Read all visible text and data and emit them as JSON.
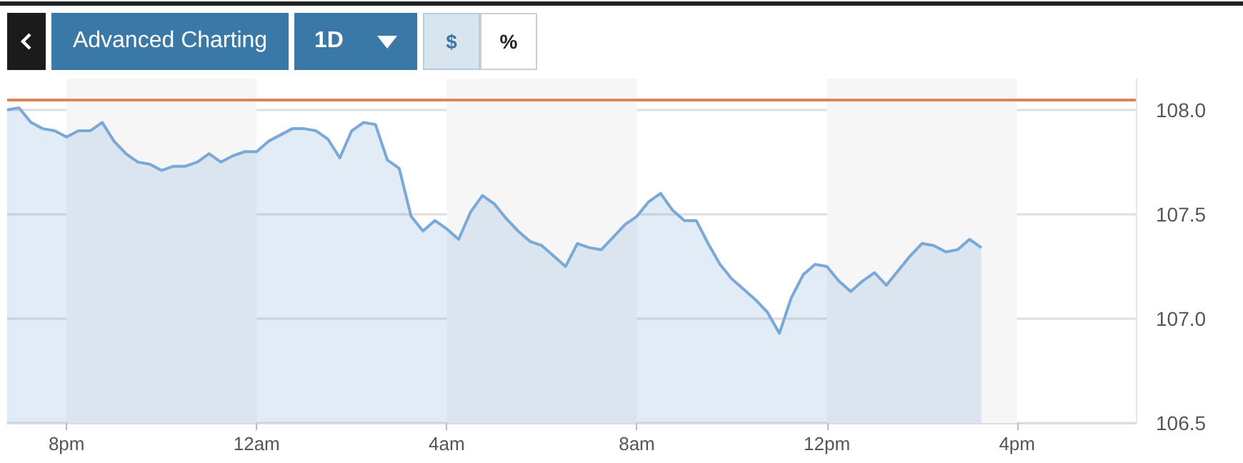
{
  "chart_data": {
    "type": "area",
    "annotations": [
      "Advanced Charting",
      "1D",
      "$",
      "%"
    ],
    "categories": [
      null,
      null,
      null,
      null,
      null,
      "8pm",
      null,
      null,
      null,
      null,
      null,
      null,
      null,
      null,
      null,
      null,
      null,
      null,
      null,
      null,
      null,
      "12am",
      null,
      null,
      null,
      null,
      null,
      null,
      null,
      null,
      null,
      null,
      null,
      null,
      null,
      null,
      null,
      "4am",
      null,
      null,
      null,
      null,
      null,
      null,
      null,
      null,
      null,
      null,
      null,
      null,
      null,
      null,
      null,
      "8am",
      null,
      null,
      null,
      null,
      null,
      null,
      null,
      null,
      null,
      null,
      null,
      null,
      null,
      null,
      null,
      "12pm",
      null,
      null,
      null,
      null,
      null,
      null,
      null,
      null,
      null,
      null,
      null,
      null,
      null,
      null,
      null,
      "4pm",
      null,
      null,
      null,
      null,
      null,
      null,
      null,
      null,
      null,
      null
    ],
    "series": [
      {
        "color": "#7aa8d8",
        "values": [
          108.0,
          108.01,
          107.94,
          107.91,
          107.9,
          107.87,
          107.9,
          107.9,
          107.94,
          107.85,
          107.79,
          107.75,
          107.74,
          107.71,
          107.73,
          107.73,
          107.75,
          107.79,
          107.75,
          107.78,
          107.8,
          107.8,
          107.85,
          107.88,
          107.91,
          107.91,
          107.9,
          107.86,
          107.77,
          107.9,
          107.94,
          107.93,
          107.76,
          107.72,
          107.49,
          107.42,
          107.47,
          107.43,
          107.38,
          107.51,
          107.59,
          107.55,
          107.48,
          107.42,
          107.37,
          107.35,
          107.3,
          107.25,
          107.36,
          107.34,
          107.33,
          107.39,
          107.45,
          107.49,
          107.56,
          107.6,
          107.52,
          107.47,
          107.47,
          107.36,
          107.26,
          107.19,
          107.14,
          107.09,
          107.03,
          106.93,
          107.1,
          107.21,
          107.26,
          107.25,
          107.18,
          107.13,
          107.18,
          107.22,
          107.16,
          107.23,
          107.3,
          107.36,
          107.35,
          107.32,
          107.33,
          107.38,
          107.34,
          null,
          null,
          null,
          null,
          null,
          null,
          null,
          null,
          null,
          null,
          null,
          null,
          null
        ]
      }
    ],
    "ylim": [
      106.5,
      108.15
    ],
    "yticks": [
      {
        "value": 106.5,
        "label": "106.5"
      },
      {
        "value": 107,
        "label": "107.0"
      },
      {
        "value": 107.5,
        "label": "107.5"
      },
      {
        "value": 108,
        "label": "108.0"
      }
    ],
    "ref_lines": [
      {
        "axis": "y",
        "value": 108.05,
        "color": "#d9885a"
      }
    ],
    "bands": [
      {
        "axis": "x",
        "from": "8pm",
        "to": "12am",
        "color": "#f6f6f6"
      },
      {
        "axis": "x",
        "from": "4am",
        "to": "8am",
        "color": "#f6f6f6"
      },
      {
        "axis": "x",
        "from": "12pm",
        "to": "4pm",
        "color": "#f6f6f6"
      }
    ],
    "grid": "y",
    "marker": "none",
    "line_style": "solid"
  }
}
